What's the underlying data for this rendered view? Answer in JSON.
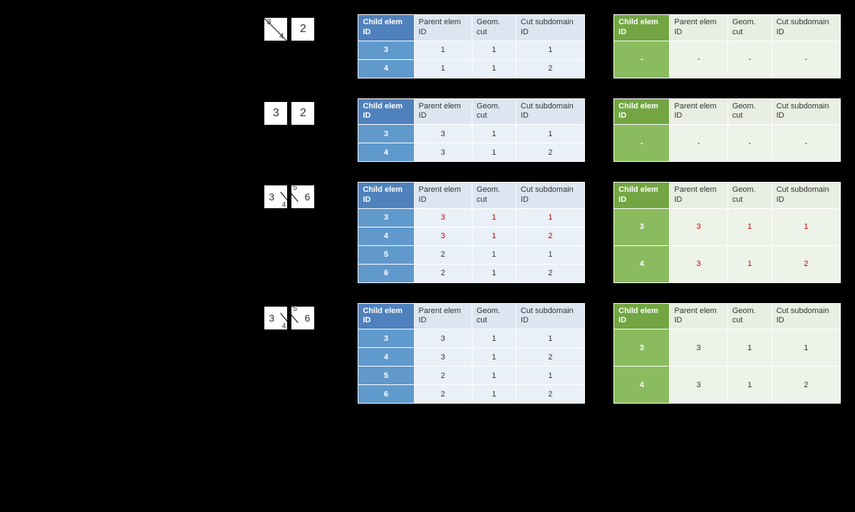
{
  "headers": {
    "id": "Child elem ID",
    "parent": "Parent elem ID",
    "geom": "Geom. cut",
    "sub": "Cut subdomain ID"
  },
  "colors": {
    "blue_header_bg": "#dce6f1",
    "blue_id_header_bg": "#4f81bd",
    "blue_body_bg": "#eaf0f8",
    "blue_id_body_bg": "#6099cc",
    "green_header_bg": "#e8eee2",
    "green_id_header_bg": "#73a643",
    "green_body_bg": "#eef3e9",
    "green_id_body_bg": "#8bbb5f",
    "red_text": "#cc0000",
    "page_bg": "#000000",
    "cell_bg": "#ffffff"
  },
  "rows": [
    {
      "diagram": {
        "cells": [
          {
            "type": "split-down",
            "tl": "3",
            "br": "4"
          },
          {
            "type": "plain",
            "center": "2"
          }
        ]
      },
      "blue": {
        "rows": [
          {
            "id": "3",
            "vals": [
              "1",
              "1",
              "1"
            ],
            "red": false
          },
          {
            "id": "4",
            "vals": [
              "1",
              "1",
              "2"
            ],
            "red": false
          }
        ]
      },
      "green": {
        "rows": [
          {
            "id": "-",
            "vals": [
              "-",
              "-",
              "-"
            ],
            "red": false
          }
        ]
      }
    },
    {
      "diagram": {
        "cells": [
          {
            "type": "plain",
            "center": "3"
          },
          {
            "type": "plain",
            "center": "2"
          }
        ]
      },
      "blue": {
        "rows": [
          {
            "id": "3",
            "vals": [
              "3",
              "1",
              "1"
            ],
            "red": false
          },
          {
            "id": "4",
            "vals": [
              "3",
              "1",
              "2"
            ],
            "red": false
          }
        ]
      },
      "green": {
        "rows": [
          {
            "id": "-",
            "vals": [
              "-",
              "-",
              "-"
            ],
            "red": false
          }
        ]
      }
    },
    {
      "diagram": {
        "cells": [
          {
            "type": "split-right-down",
            "left": "3",
            "br_small": "4"
          },
          {
            "type": "split-left-up",
            "right": "6",
            "tl_small": "5"
          }
        ]
      },
      "blue": {
        "rows": [
          {
            "id": "3",
            "vals": [
              "3",
              "1",
              "1"
            ],
            "red": true
          },
          {
            "id": "4",
            "vals": [
              "3",
              "1",
              "2"
            ],
            "red": true
          },
          {
            "id": "5",
            "vals": [
              "2",
              "1",
              "1"
            ],
            "red": false
          },
          {
            "id": "6",
            "vals": [
              "2",
              "1",
              "2"
            ],
            "red": false
          }
        ]
      },
      "green": {
        "rows": [
          {
            "id": "3",
            "vals": [
              "3",
              "1",
              "1"
            ],
            "red": true
          },
          {
            "id": "4",
            "vals": [
              "3",
              "1",
              "2"
            ],
            "red": true
          }
        ]
      }
    },
    {
      "diagram": {
        "cells": [
          {
            "type": "split-right-down",
            "left": "3",
            "br_small": "4"
          },
          {
            "type": "split-left-up",
            "right": "6",
            "tl_small": "5"
          }
        ]
      },
      "blue": {
        "rows": [
          {
            "id": "3",
            "vals": [
              "3",
              "1",
              "1"
            ],
            "red": false
          },
          {
            "id": "4",
            "vals": [
              "3",
              "1",
              "2"
            ],
            "red": false
          },
          {
            "id": "5",
            "vals": [
              "2",
              "1",
              "1"
            ],
            "red": false
          },
          {
            "id": "6",
            "vals": [
              "2",
              "1",
              "2"
            ],
            "red": false
          }
        ]
      },
      "green": {
        "rows": [
          {
            "id": "3",
            "vals": [
              "3",
              "1",
              "1"
            ],
            "red": false
          },
          {
            "id": "4",
            "vals": [
              "3",
              "1",
              "2"
            ],
            "red": false
          }
        ]
      }
    }
  ]
}
